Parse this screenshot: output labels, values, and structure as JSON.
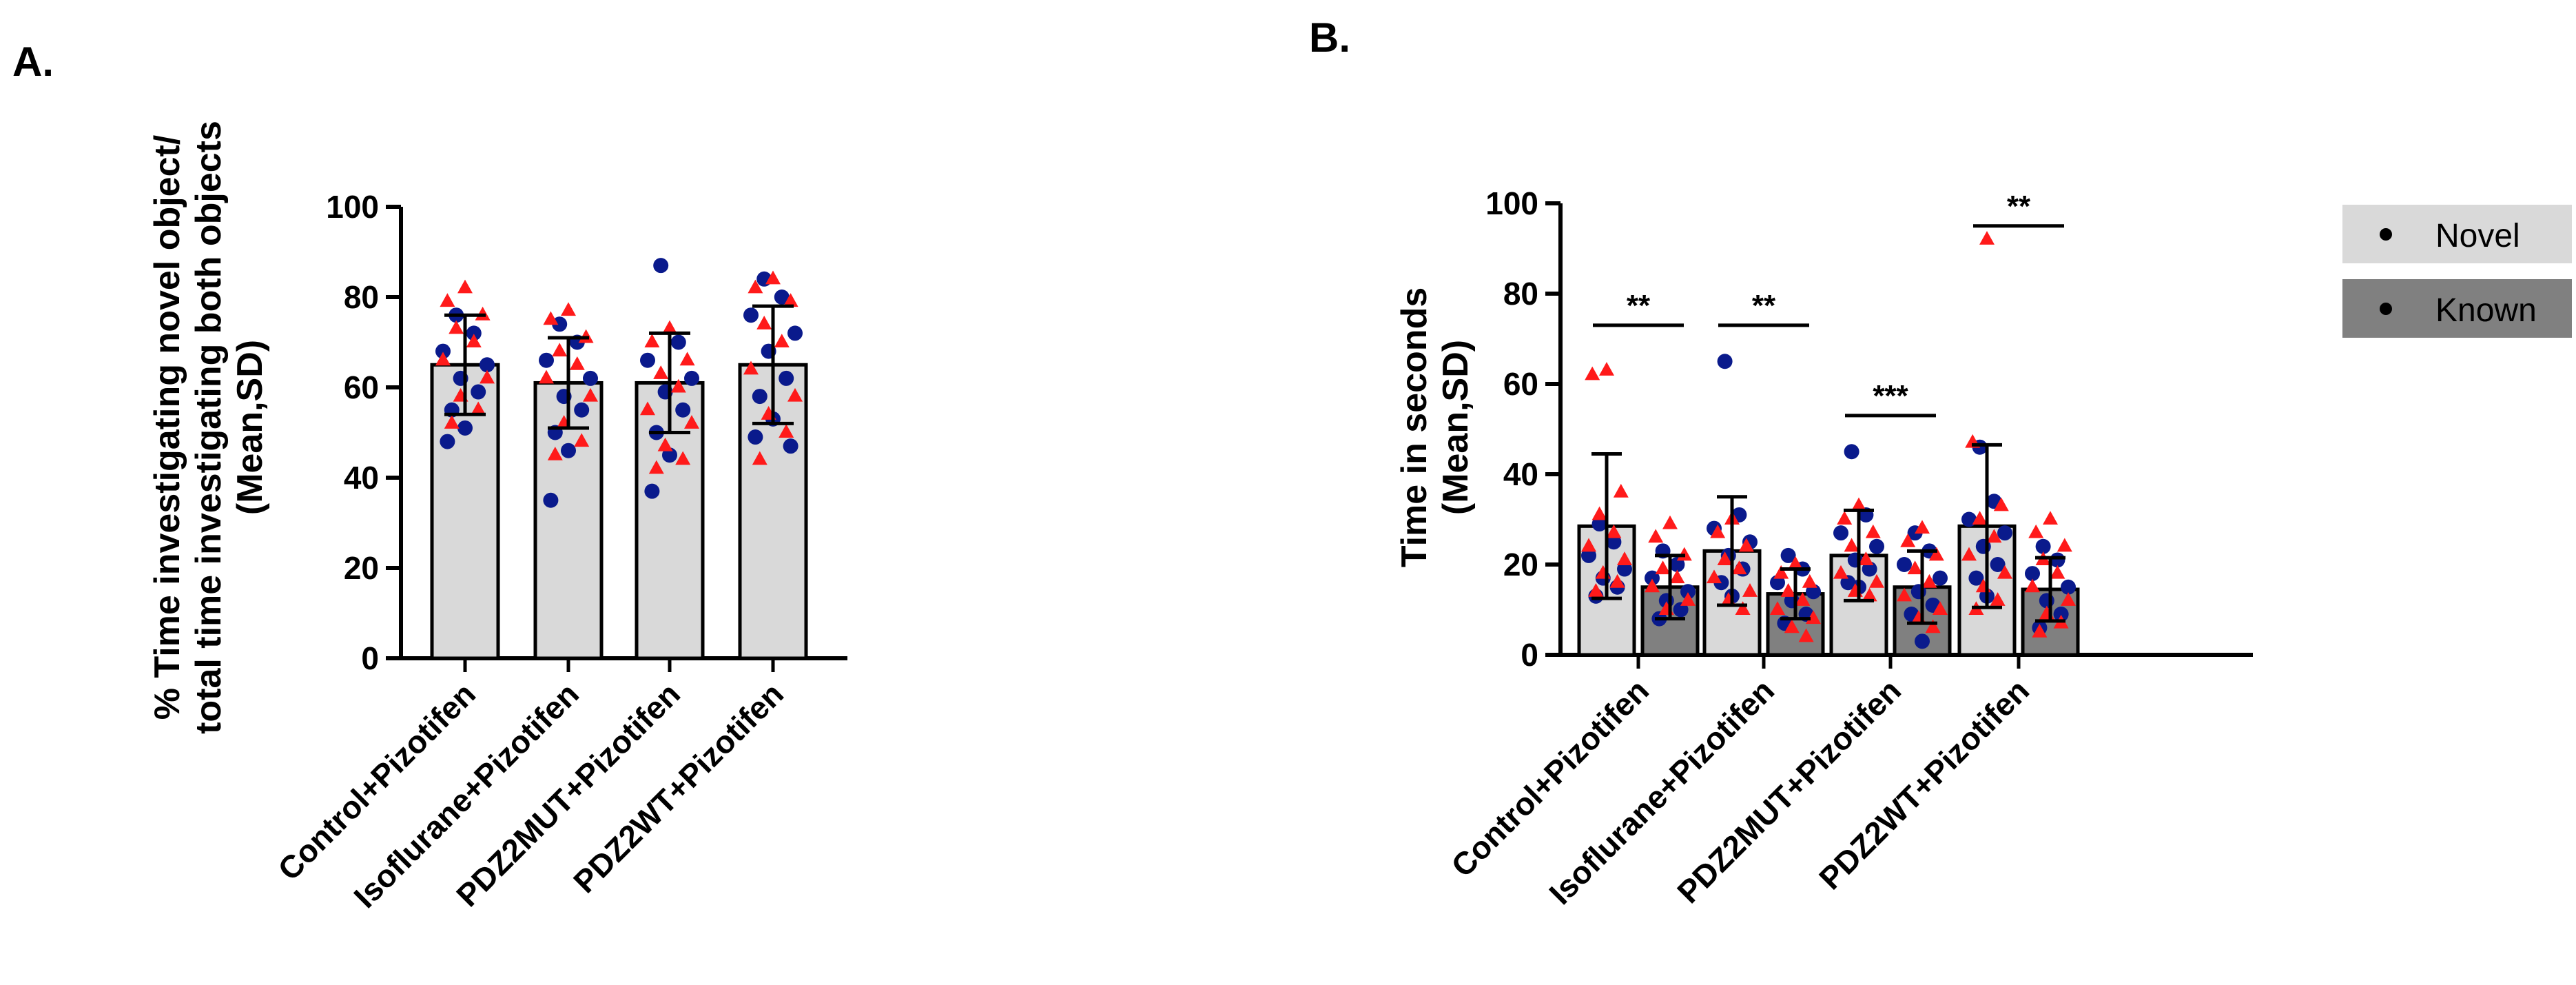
{
  "panels": {
    "a": {
      "label": "A."
    },
    "b": {
      "label": "B."
    }
  },
  "colors": {
    "red": "#ff1a1a",
    "blue": "#0a1a8c",
    "bar_light": "#d9d9d9",
    "bar_dark": "#808080"
  },
  "chart_data": [
    {
      "type": "bar",
      "panel": "A.",
      "title": "",
      "categories": [
        "Control+Pizotifen",
        "Isoflurane+Pizotifen",
        "PDZ2MUT+Pizotifen",
        "PDZ2WT+Pizotifen"
      ],
      "ylabel_lines": [
        "% Time investigating novel object/",
        "total time investigating both objects",
        "(Mean,SD)"
      ],
      "ylim": [
        0,
        100
      ],
      "yticks": [
        "0",
        "20",
        "40",
        "60",
        "80",
        "100"
      ],
      "series": [
        {
          "mean": [
            65,
            61,
            61,
            65
          ],
          "sd": [
            11,
            10,
            11,
            13
          ],
          "red_points": [
            [
              82,
              79,
              76,
              73,
              70,
              66,
              62,
              58,
              55,
              52
            ],
            [
              77,
              75,
              71,
              68,
              65,
              62,
              58,
              52,
              48,
              45
            ],
            [
              73,
              70,
              66,
              63,
              60,
              55,
              52,
              47,
              44,
              42
            ],
            [
              84,
              82,
              79,
              74,
              70,
              64,
              58,
              54,
              50,
              44
            ]
          ],
          "blue_points": [
            [
              76,
              72,
              68,
              65,
              62,
              59,
              55,
              51,
              48
            ],
            [
              74,
              70,
              66,
              62,
              58,
              55,
              50,
              46,
              35
            ],
            [
              87,
              70,
              66,
              62,
              59,
              55,
              50,
              45,
              37
            ],
            [
              84,
              80,
              76,
              72,
              68,
              62,
              58,
              53,
              49,
              47
            ]
          ]
        }
      ]
    },
    {
      "type": "bar",
      "panel": "B.",
      "title": "",
      "categories": [
        "Control+Pizotifen",
        "Isoflurane+Pizotifen",
        "PDZ2MUT+Pizotifen",
        "PDZ2WT+Pizotifen"
      ],
      "ylabel_lines": [
        "Time in seconds",
        "(Mean,SD)"
      ],
      "ylim": [
        0,
        100
      ],
      "yticks": [
        "0",
        "20",
        "40",
        "60",
        "80",
        "100"
      ],
      "series": [
        {
          "name": "Novel",
          "mean": [
            28.5,
            23,
            22,
            28.5
          ],
          "sd": [
            16,
            12,
            10,
            18
          ],
          "red_points": [
            [
              63,
              62,
              36,
              31,
              27,
              24,
              21,
              18,
              16,
              14
            ],
            [
              30,
              27,
              24,
              21,
              19,
              17,
              14,
              12,
              10
            ],
            [
              33,
              30,
              27,
              24,
              21,
              18,
              16,
              14,
              13
            ],
            [
              92,
              47,
              33,
              30,
              26,
              22,
              18,
              15,
              12,
              10
            ]
          ],
          "blue_points": [
            [
              29,
              25,
              22,
              19,
              17,
              15,
              13
            ],
            [
              65,
              31,
              28,
              25,
              22,
              19,
              16,
              13
            ],
            [
              45,
              31,
              27,
              24,
              21,
              19,
              16,
              15
            ],
            [
              46,
              34,
              30,
              27,
              24,
              20,
              17,
              13
            ]
          ]
        },
        {
          "name": "Known",
          "mean": [
            15,
            13.5,
            15,
            14.5
          ],
          "sd": [
            7,
            5.5,
            8,
            7
          ],
          "red_points": [
            [
              29,
              26,
              22,
              19,
              17,
              15,
              12,
              10
            ],
            [
              20,
              18,
              16,
              14,
              12,
              10,
              8,
              6,
              4
            ],
            [
              28,
              25,
              22,
              19,
              16,
              13,
              10,
              8,
              6
            ],
            [
              30,
              27,
              24,
              21,
              18,
              15,
              12,
              9,
              7,
              5
            ]
          ],
          "blue_points": [
            [
              23,
              20,
              17,
              14,
              12,
              10,
              8
            ],
            [
              22,
              19,
              16,
              14,
              12,
              9,
              7
            ],
            [
              27,
              23,
              20,
              17,
              14,
              11,
              9,
              3
            ],
            [
              24,
              21,
              18,
              15,
              12,
              9,
              6
            ]
          ]
        }
      ],
      "significance": [
        "**",
        "**",
        "***",
        "**"
      ],
      "legend": {
        "position": "right",
        "items": [
          "Novel",
          "Known"
        ]
      }
    }
  ]
}
